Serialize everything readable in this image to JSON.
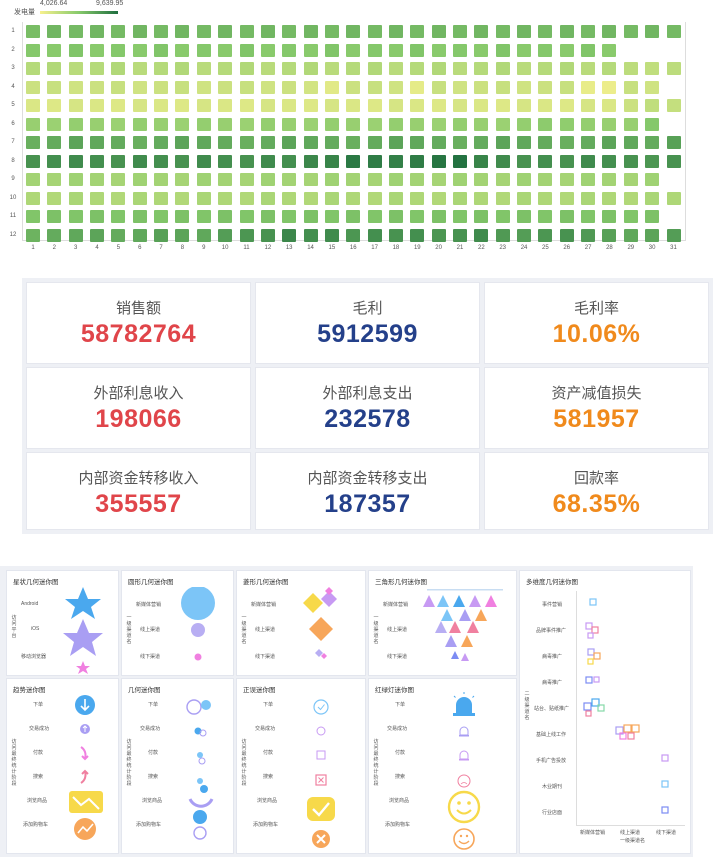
{
  "heatmap": {
    "legend": {
      "title": "发电量",
      "min": "4,026.64",
      "max": "9,639.95"
    },
    "rows": [
      "1",
      "2",
      "3",
      "4",
      "5",
      "6",
      "7",
      "8",
      "9",
      "10",
      "11",
      "12"
    ],
    "cols": [
      "1",
      "2",
      "3",
      "4",
      "5",
      "6",
      "7",
      "8",
      "9",
      "10",
      "11",
      "12",
      "13",
      "14",
      "15",
      "16",
      "17",
      "18",
      "19",
      "20",
      "21",
      "22",
      "23",
      "24",
      "25",
      "26",
      "27",
      "28",
      "29",
      "30",
      "31"
    ],
    "colors": {
      "low": "#f7f18e",
      "mid": "#86c96b",
      "high": "#1f6e3f"
    },
    "values": [
      [
        7.4,
        7.6,
        7.5,
        7.6,
        7.5,
        7.6,
        7.5,
        7.6,
        7.5,
        7.6,
        7.5,
        7.6,
        7.5,
        7.6,
        7.5,
        7.6,
        7.5,
        7.6,
        7.5,
        7.6,
        7.5,
        7.6,
        7.5,
        7.6,
        7.5,
        7.6,
        7.5,
        7.6,
        7.5,
        7.6,
        7.5
      ],
      [
        7.1,
        7.0,
        7.2,
        7.0,
        7.1,
        7.0,
        7.2,
        7.0,
        7.1,
        7.0,
        7.2,
        7.0,
        7.1,
        7.0,
        7.2,
        7.0,
        7.1,
        7.0,
        7.2,
        7.0,
        7.1,
        7.0,
        7.2,
        7.0,
        7.1,
        7.0,
        7.2,
        7.0,
        null,
        null,
        null
      ],
      [
        5.8,
        5.9,
        5.7,
        5.8,
        5.9,
        5.7,
        5.8,
        5.9,
        5.7,
        5.8,
        5.9,
        5.7,
        5.8,
        5.9,
        5.7,
        5.8,
        5.9,
        5.7,
        5.8,
        5.9,
        5.7,
        5.8,
        5.9,
        5.7,
        5.8,
        5.9,
        5.7,
        5.8,
        5.6,
        5.5,
        5.6
      ],
      [
        5.2,
        5.3,
        5.1,
        5.2,
        5.3,
        5.1,
        5.2,
        5.3,
        5.1,
        5.2,
        5.3,
        5.1,
        5.2,
        5.0,
        4.6,
        5.2,
        5.3,
        5.1,
        4.5,
        5.3,
        5.1,
        5.2,
        5.3,
        5.1,
        5.2,
        5.3,
        4.4,
        4.3,
        5.3,
        5.1,
        null
      ],
      [
        4.8,
        4.7,
        4.9,
        4.8,
        4.7,
        4.9,
        4.8,
        4.7,
        4.9,
        4.8,
        4.7,
        4.9,
        4.8,
        4.7,
        4.9,
        4.8,
        4.7,
        4.9,
        4.8,
        4.7,
        4.9,
        4.8,
        4.7,
        4.9,
        4.8,
        4.7,
        4.9,
        4.8,
        5.2,
        5.5,
        5.4
      ],
      [
        6.6,
        6.5,
        6.7,
        6.6,
        6.5,
        6.7,
        6.6,
        6.5,
        6.7,
        6.6,
        6.5,
        6.7,
        6.6,
        6.5,
        6.7,
        6.6,
        6.5,
        6.7,
        6.6,
        6.5,
        6.7,
        6.6,
        6.5,
        6.7,
        6.9,
        6.8,
        6.7,
        6.6,
        6.6,
        7.1,
        null
      ],
      [
        7.8,
        7.9,
        8.1,
        8.0,
        7.9,
        7.8,
        7.9,
        8.1,
        8.0,
        7.9,
        7.8,
        7.9,
        8.1,
        8.0,
        7.9,
        7.8,
        7.9,
        8.1,
        8.0,
        7.9,
        7.8,
        7.9,
        8.1,
        8.0,
        7.9,
        7.8,
        7.9,
        8.1,
        8.0,
        7.9,
        8.2
      ],
      [
        8.6,
        8.7,
        8.8,
        8.7,
        8.6,
        8.8,
        8.7,
        8.6,
        8.8,
        8.7,
        8.6,
        8.8,
        8.7,
        8.9,
        9.0,
        9.3,
        9.2,
        9.1,
        9.2,
        9.4,
        9.5,
        9.0,
        8.8,
        8.6,
        8.7,
        8.6,
        8.8,
        8.7,
        8.6,
        8.5,
        8.6
      ],
      [
        6.3,
        6.2,
        6.4,
        6.3,
        6.2,
        6.4,
        6.3,
        6.2,
        6.4,
        6.3,
        6.2,
        6.4,
        6.3,
        6.2,
        6.4,
        6.3,
        6.2,
        6.4,
        6.3,
        6.2,
        6.4,
        6.3,
        6.2,
        6.4,
        6.3,
        6.2,
        6.4,
        6.3,
        6.2,
        6.4,
        null
      ],
      [
        6.0,
        5.9,
        6.1,
        6.0,
        5.9,
        6.1,
        6.0,
        5.9,
        6.1,
        6.0,
        5.9,
        6.1,
        6.0,
        5.9,
        6.1,
        6.0,
        5.9,
        6.1,
        6.0,
        5.9,
        6.1,
        6.0,
        5.9,
        6.1,
        6.0,
        5.9,
        6.1,
        6.0,
        5.9,
        6.1,
        6.0
      ],
      [
        7.2,
        7.3,
        7.2,
        7.3,
        7.2,
        7.3,
        7.2,
        7.3,
        7.2,
        7.3,
        7.2,
        7.3,
        7.2,
        7.3,
        7.2,
        7.3,
        7.2,
        7.3,
        7.2,
        7.3,
        7.2,
        7.3,
        7.2,
        7.3,
        7.2,
        7.3,
        7.2,
        7.3,
        7.2,
        7.3,
        null
      ],
      [
        7.7,
        7.9,
        8.0,
        8.1,
        7.9,
        8.0,
        8.2,
        8.1,
        8.0,
        8.3,
        8.5,
        8.6,
        8.9,
        8.7,
        8.8,
        8.5,
        8.7,
        8.6,
        8.7,
        8.5,
        8.6,
        8.8,
        8.4,
        8.3,
        8.5,
        8.6,
        8.4,
        8.2,
        8.0,
        8.1,
        8.3
      ]
    ]
  },
  "kpis": [
    {
      "title": "销售额",
      "value": "58782764",
      "color": "#e0454a"
    },
    {
      "title": "毛利",
      "value": "5912599",
      "color": "#24408a"
    },
    {
      "title": "毛利率",
      "value": "10.06%",
      "color": "#f08a1c"
    },
    {
      "title": "外部利息收入",
      "value": "198066",
      "color": "#e0454a"
    },
    {
      "title": "外部利息支出",
      "value": "232578",
      "color": "#24408a"
    },
    {
      "title": "资产减值损失",
      "value": "581957",
      "color": "#f08a1c"
    },
    {
      "title": "内部资金转移收入",
      "value": "355557",
      "color": "#e0454a"
    },
    {
      "title": "内部资金转移支出",
      "value": "187357",
      "color": "#24408a"
    },
    {
      "title": "回款率",
      "value": "68.35%",
      "color": "#f08a1c"
    }
  ],
  "mini": {
    "star": {
      "title": "星状几何迷你图",
      "axis": "访问平台",
      "items": [
        "Android",
        "iOS",
        "移动浏览器"
      ]
    },
    "circle": {
      "title": "圆形几何迷你图",
      "axis": "一级渠道名",
      "items": [
        "新媒体营销",
        "线上渠道",
        "线下渠道"
      ]
    },
    "diamond": {
      "title": "菱形几何迷你图",
      "axis": "一级渠道名",
      "items": [
        "新媒体营销",
        "线上渠道",
        "线下渠道"
      ]
    },
    "triangle": {
      "title": "三角形几何迷你图",
      "axis": "一级渠道名",
      "items": [
        "新媒体营销",
        "线上渠道",
        "线下渠道"
      ]
    },
    "multi": {
      "title": "多维度几何迷你图",
      "yaxis": "二级渠道名",
      "xaxis": "一级渠道名",
      "rows": [
        "事件营销",
        "品牌事件推广",
        "病毒推广",
        "病毒推广",
        "站台、贴纸推广",
        "基础上线工作",
        "手机广告投放",
        "木业期刊",
        "行业店面"
      ],
      "cols": [
        "新媒体营销",
        "线上渠道",
        "线下渠道"
      ]
    },
    "trend": {
      "title": "趋势迷你图",
      "axis": "访问最终统计阶段",
      "items": [
        "下单",
        "交易成功",
        "付款",
        "搜索",
        "浏览商品",
        "添加购物车"
      ]
    },
    "geo": {
      "title": "几何迷你图",
      "axis": "访问最终统计阶段",
      "items": [
        "下单",
        "交易成功",
        "付款",
        "搜索",
        "浏览商品",
        "添加购物车"
      ]
    },
    "correct": {
      "title": "正误迷你图",
      "axis": "访问最终统计阶段",
      "items": [
        "下单",
        "交易成功",
        "付款",
        "搜索",
        "浏览商品",
        "添加购物车"
      ]
    },
    "traffic": {
      "title": "红绿灯迷你图",
      "axis": "访问最终统计阶段",
      "items": [
        "下单",
        "交易成功",
        "付款",
        "搜索",
        "浏览商品",
        "添加购物车"
      ]
    }
  }
}
